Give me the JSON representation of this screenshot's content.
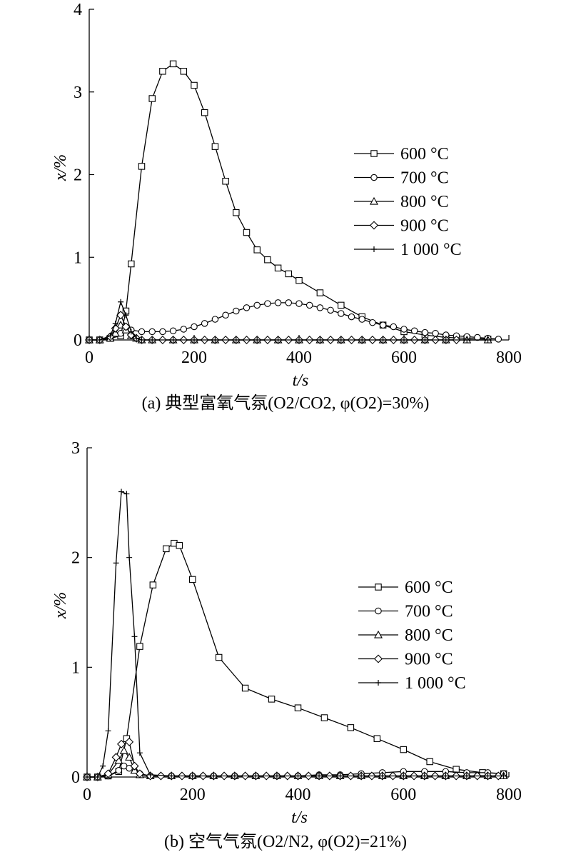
{
  "chart_data": [
    {
      "type": "line",
      "caption": "(a) 典型富氧气氛(O2/CO2, φ(O2)=30%)",
      "xlabel": "t/s",
      "ylabel": "x/%",
      "xlim": [
        0,
        800
      ],
      "ylim": [
        0,
        4
      ],
      "xticks": [
        0,
        200,
        400,
        600,
        800
      ],
      "yticks": [
        0,
        1,
        2,
        3,
        4
      ],
      "grid": false,
      "legend_position": "right",
      "series": [
        {
          "name": "600 °C",
          "marker": "square",
          "x": [
            0,
            20,
            40,
            60,
            70,
            80,
            100,
            120,
            140,
            160,
            180,
            200,
            220,
            240,
            260,
            280,
            300,
            320,
            340,
            360,
            380,
            400,
            440,
            480,
            520,
            560,
            600,
            640,
            680,
            720,
            760
          ],
          "y": [
            0,
            0,
            0.02,
            0.05,
            0.35,
            0.92,
            2.1,
            2.92,
            3.25,
            3.34,
            3.25,
            3.08,
            2.75,
            2.34,
            1.92,
            1.54,
            1.3,
            1.09,
            0.97,
            0.87,
            0.8,
            0.72,
            0.57,
            0.42,
            0.28,
            0.18,
            0.1,
            0.06,
            0.03,
            0.02,
            0.01
          ]
        },
        {
          "name": "700 °C",
          "marker": "circle",
          "x": [
            0,
            20,
            40,
            60,
            80,
            100,
            120,
            140,
            160,
            180,
            200,
            220,
            240,
            260,
            280,
            300,
            320,
            340,
            360,
            380,
            400,
            420,
            440,
            460,
            480,
            500,
            520,
            540,
            560,
            580,
            600,
            620,
            640,
            660,
            680,
            700,
            720,
            740,
            760,
            780
          ],
          "y": [
            0,
            0,
            0.02,
            0.08,
            0.12,
            0.1,
            0.1,
            0.1,
            0.11,
            0.13,
            0.16,
            0.2,
            0.25,
            0.3,
            0.35,
            0.39,
            0.42,
            0.44,
            0.45,
            0.45,
            0.44,
            0.42,
            0.39,
            0.36,
            0.32,
            0.28,
            0.25,
            0.21,
            0.18,
            0.16,
            0.13,
            0.11,
            0.09,
            0.08,
            0.06,
            0.05,
            0.04,
            0.03,
            0.02,
            0.01
          ]
        },
        {
          "name": "800 °C",
          "marker": "triangle",
          "x": [
            0,
            20,
            40,
            50,
            60,
            70,
            80,
            90,
            100,
            120,
            160,
            200,
            240,
            280,
            320,
            360,
            400,
            440,
            480,
            520,
            560,
            600,
            640,
            680,
            720,
            760
          ],
          "y": [
            0,
            0,
            0.02,
            0.08,
            0.18,
            0.12,
            0.05,
            0.02,
            0,
            0,
            0,
            0,
            0,
            0,
            0,
            0,
            0,
            0,
            0,
            0,
            0,
            0,
            0,
            0,
            0,
            0
          ]
        },
        {
          "name": "900 °C",
          "marker": "diamond",
          "x": [
            0,
            20,
            40,
            50,
            60,
            70,
            80,
            90,
            100,
            120,
            140,
            160,
            180,
            200,
            220,
            240,
            260,
            280,
            300,
            320,
            340,
            360,
            380,
            400,
            420,
            440,
            460,
            480,
            500,
            520,
            540,
            560,
            580,
            600,
            620,
            640,
            660,
            680,
            700
          ],
          "y": [
            0,
            0,
            0.04,
            0.14,
            0.3,
            0.16,
            0.06,
            0.02,
            0,
            0,
            0,
            0,
            0,
            0,
            0,
            0,
            0,
            0,
            0,
            0,
            0,
            0,
            0,
            0,
            0,
            0,
            0,
            0,
            0,
            0,
            0,
            0,
            0,
            0,
            0,
            0,
            0,
            0,
            0
          ]
        },
        {
          "name": "1 000 °C",
          "marker": "plus",
          "x": [
            0,
            20,
            40,
            50,
            60,
            70,
            80,
            90,
            100,
            120,
            160,
            200,
            240,
            280,
            320,
            360,
            400,
            440,
            480,
            520,
            560,
            600,
            640,
            680,
            720,
            760
          ],
          "y": [
            0,
            0,
            0.05,
            0.2,
            0.46,
            0.3,
            0.1,
            0.02,
            0,
            0,
            0,
            0,
            0,
            0,
            0,
            0,
            0,
            0,
            0,
            0,
            0,
            0,
            0,
            0,
            0,
            0
          ]
        }
      ]
    },
    {
      "type": "line",
      "caption": "(b) 空气气氛(O2/N2, φ(O2)=21%)",
      "xlabel": "t/s",
      "ylabel": "x/%",
      "xlim": [
        0,
        800
      ],
      "ylim": [
        0,
        3
      ],
      "xticks": [
        0,
        200,
        400,
        600,
        800
      ],
      "yticks": [
        0,
        1,
        2,
        3
      ],
      "grid": false,
      "legend_position": "right",
      "series": [
        {
          "name": "600 °C",
          "marker": "square",
          "x": [
            0,
            20,
            40,
            60,
            75,
            100,
            125,
            150,
            165,
            175,
            200,
            250,
            300,
            350,
            400,
            450,
            500,
            550,
            600,
            650,
            700,
            750,
            790
          ],
          "y": [
            0,
            0,
            0.01,
            0.05,
            0.35,
            1.19,
            1.75,
            2.08,
            2.13,
            2.11,
            1.8,
            1.09,
            0.81,
            0.71,
            0.63,
            0.54,
            0.45,
            0.35,
            0.25,
            0.14,
            0.07,
            0.04,
            0.03
          ]
        },
        {
          "name": "700 °C",
          "marker": "circle",
          "x": [
            0,
            20,
            40,
            60,
            70,
            80,
            100,
            120,
            160,
            200,
            240,
            280,
            320,
            360,
            400,
            440,
            480,
            520,
            560,
            600,
            640,
            680,
            720,
            760,
            790
          ],
          "y": [
            0,
            0,
            0.01,
            0.06,
            0.1,
            0.08,
            0.03,
            0.01,
            0.01,
            0.01,
            0.01,
            0.01,
            0.01,
            0.01,
            0.01,
            0.02,
            0.02,
            0.03,
            0.04,
            0.05,
            0.05,
            0.05,
            0.04,
            0.04,
            0.03
          ]
        },
        {
          "name": "800 °C",
          "marker": "triangle",
          "x": [
            0,
            20,
            40,
            60,
            70,
            80,
            90,
            100,
            120,
            160,
            200,
            240,
            280,
            320,
            360,
            400,
            440,
            480,
            520,
            560,
            600,
            640,
            680,
            720,
            760,
            790
          ],
          "y": [
            0,
            0,
            0.02,
            0.15,
            0.24,
            0.18,
            0.06,
            0.02,
            0.01,
            0.01,
            0.01,
            0.01,
            0.01,
            0.01,
            0.01,
            0.01,
            0.01,
            0.01,
            0.01,
            0.01,
            0.01,
            0.01,
            0.01,
            0.01,
            0.01,
            0.01
          ]
        },
        {
          "name": "900 °C",
          "marker": "diamond",
          "x": [
            0,
            20,
            40,
            55,
            65,
            80,
            90,
            100,
            120,
            140,
            160,
            180,
            200,
            220,
            240,
            260,
            280,
            300,
            320,
            340,
            360,
            380,
            400,
            420,
            440,
            460,
            480,
            500,
            520,
            540,
            560,
            580,
            600,
            620,
            640,
            660,
            680,
            700,
            720,
            740,
            760,
            780
          ],
          "y": [
            0,
            0,
            0.03,
            0.18,
            0.3,
            0.32,
            0.1,
            0.03,
            0.01,
            0.01,
            0.01,
            0.01,
            0.01,
            0.01,
            0.01,
            0.01,
            0.01,
            0.01,
            0.01,
            0.01,
            0.01,
            0.01,
            0.01,
            0.01,
            0.01,
            0.01,
            0.01,
            0.01,
            0.01,
            0.01,
            0.01,
            0.01,
            0.01,
            0.01,
            0.01,
            0.01,
            0.01,
            0.01,
            0.01,
            0.01,
            0.01,
            0.01
          ]
        },
        {
          "name": "1 000 °C",
          "marker": "plus",
          "x": [
            0,
            20,
            30,
            40,
            55,
            65,
            75,
            80,
            90,
            100,
            120,
            160,
            200,
            240,
            280,
            320,
            360,
            400,
            440,
            480,
            520,
            560,
            600,
            640,
            680,
            720,
            760,
            790
          ],
          "y": [
            0,
            0,
            0.1,
            0.42,
            1.95,
            2.6,
            2.58,
            2.0,
            1.28,
            0.22,
            0.02,
            0.01,
            0.01,
            0.01,
            0.01,
            0.01,
            0.01,
            0.01,
            0.01,
            0.01,
            0.01,
            0.01,
            0.01,
            0.01,
            0.01,
            0.01,
            0.01,
            0.01
          ]
        }
      ]
    }
  ]
}
